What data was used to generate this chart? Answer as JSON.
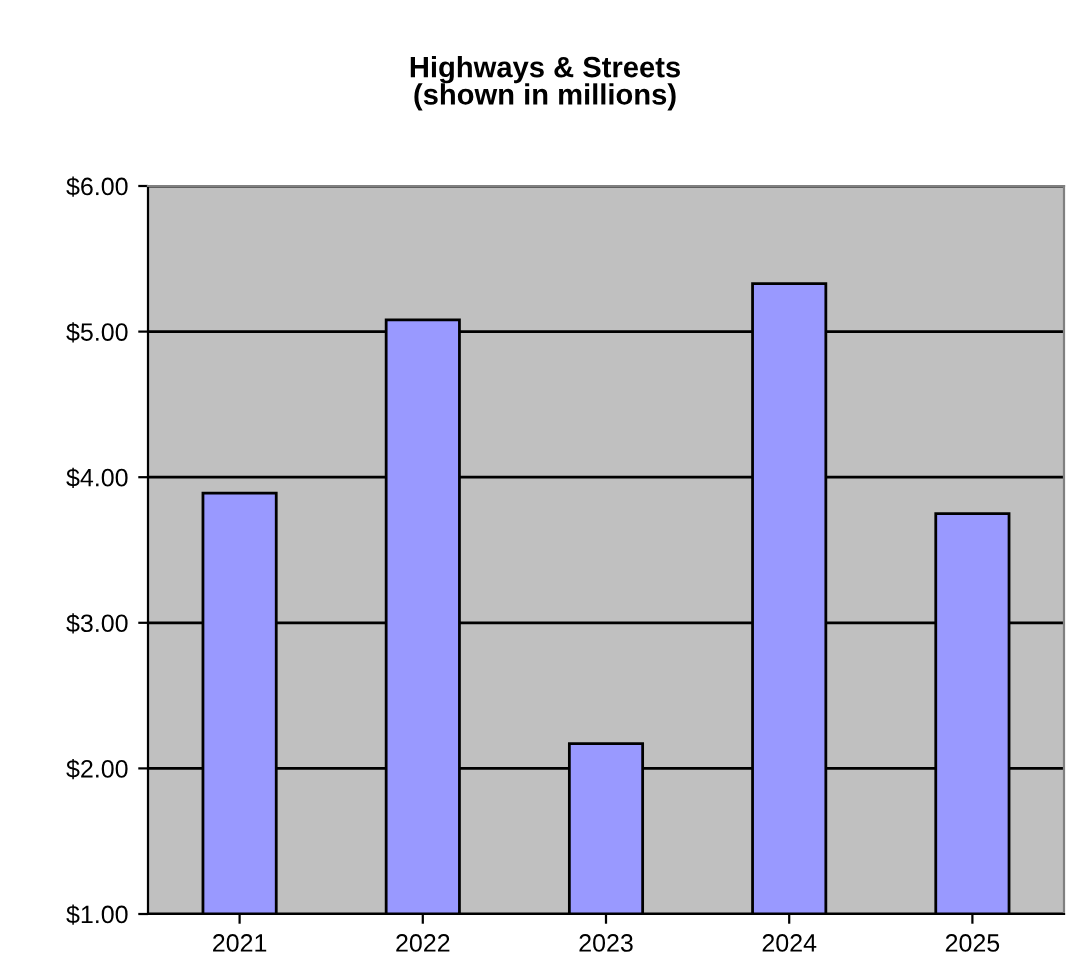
{
  "chart_data": {
    "type": "bar",
    "title": "Highways & Streets\n(shown in millions)",
    "categories": [
      "2021",
      "2022",
      "2023",
      "2024",
      "2025"
    ],
    "values": [
      3.89,
      5.08,
      2.17,
      5.33,
      3.75
    ],
    "color": "#9999ff",
    "ylim": [
      1,
      6
    ],
    "yticks": [
      {
        "value": 1,
        "label": "$1.00"
      },
      {
        "value": 2,
        "label": "$2.00"
      },
      {
        "value": 3,
        "label": "$3.00"
      },
      {
        "value": 4,
        "label": "$4.00"
      },
      {
        "value": 5,
        "label": "$5.00"
      },
      {
        "value": 6,
        "label": "$6.00"
      }
    ],
    "grid": "y",
    "legend": false
  }
}
